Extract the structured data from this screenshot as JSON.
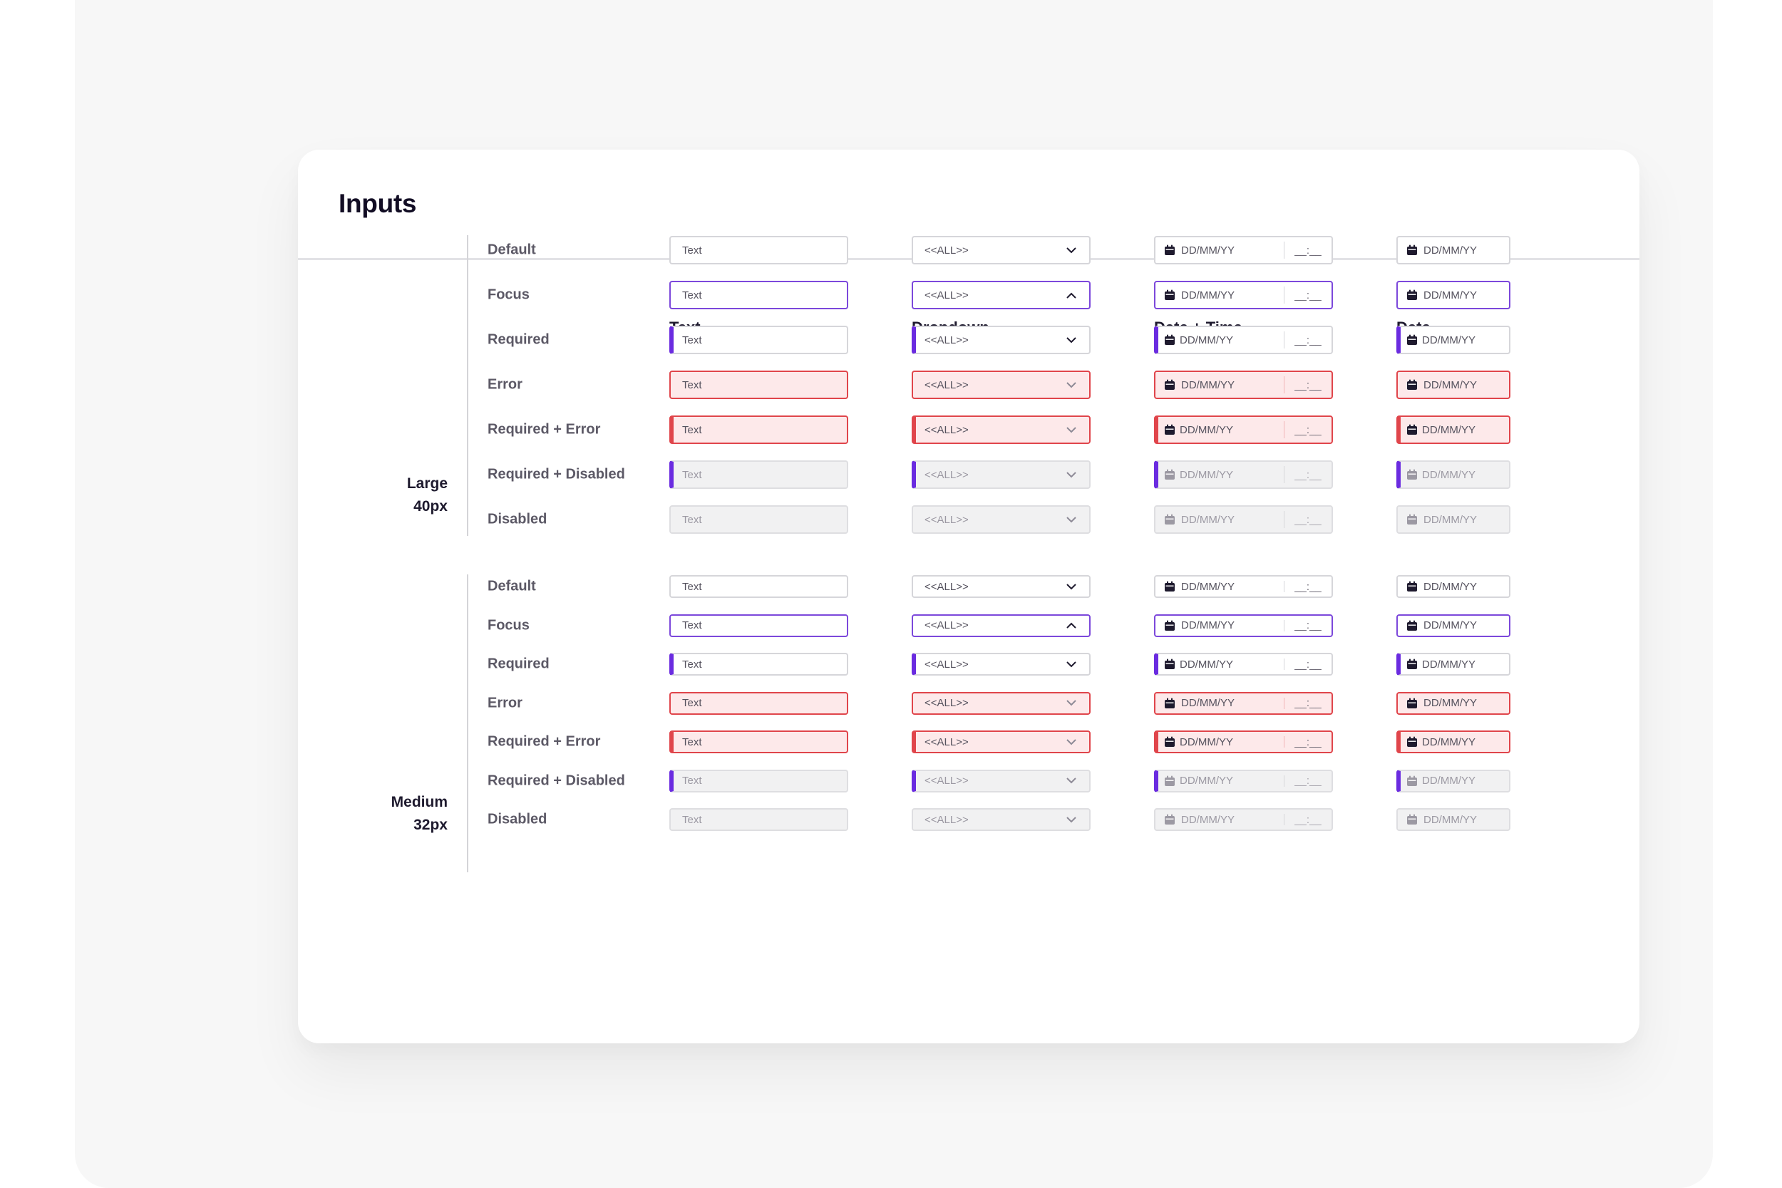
{
  "page": {
    "title": "Inputs",
    "columns": [
      "Text",
      "Dropdown",
      "Date + Time",
      "Date"
    ],
    "groups": [
      {
        "label_line1": "Large",
        "label_line2": "40px"
      },
      {
        "label_line1": "Medium",
        "label_line2": "32px"
      }
    ],
    "row_labels": [
      "Default",
      "Focus",
      "Required",
      "Error",
      "Required + Error",
      "Required + Disabled",
      "Disabled"
    ],
    "field_values": {
      "text": "Text",
      "dropdown": "<<ALL>>",
      "date_placeholder": "DD/MM/YY",
      "time_placeholder": "__:__"
    }
  },
  "icons": {
    "dropdown_closed": "chevron-down-icon",
    "dropdown_open": "chevron-up-icon",
    "date": "calendar-icon"
  },
  "colors": {
    "focus": "#7c48db",
    "required": "#6a2be0",
    "error": "#e0454b",
    "error_fill": "#fde9ea",
    "disabled_fill": "#f1f1f2"
  }
}
